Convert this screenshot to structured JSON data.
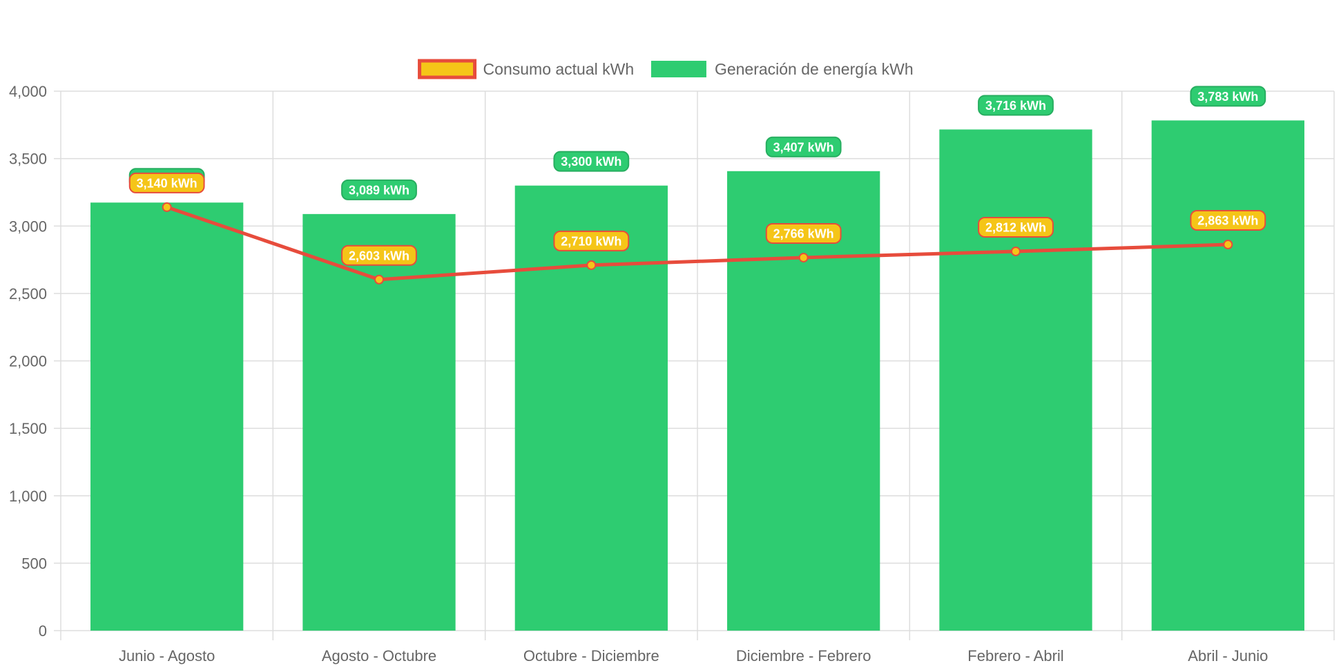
{
  "chart_data": {
    "type": "bar",
    "categories": [
      "Junio - Agosto",
      "Agosto - Octubre",
      "Octubre - Diciembre",
      "Diciembre - Febrero",
      "Febrero - Abril",
      "Abril - Junio"
    ],
    "series": [
      {
        "name": "Generación de energía kWh",
        "type": "bar",
        "values": [
          3174,
          3089,
          3300,
          3407,
          3716,
          3783
        ],
        "labels": [
          "3,174 kWh",
          "3,089 kWh",
          "3,300 kWh",
          "3,407 kWh",
          "3,716 kWh",
          "3,783 kWh"
        ],
        "color": "#2ecc71"
      },
      {
        "name": "Consumo actual kWh",
        "type": "line",
        "values": [
          3140,
          2603,
          2710,
          2766,
          2812,
          2863
        ],
        "labels": [
          "3,140 kWh",
          "2,603 kWh",
          "2,710 kWh",
          "2,766 kWh",
          "2,812 kWh",
          "2,863 kWh"
        ],
        "color": "#e74c3c",
        "fill_color": "#f5c518"
      }
    ],
    "legend": {
      "position": "top",
      "items": [
        {
          "label": "Consumo actual kWh",
          "fill": "#f5c518",
          "border": "#e74c3c"
        },
        {
          "label": "Generación de energía kWh",
          "fill": "#2ecc71",
          "border": "#2ecc71"
        }
      ]
    },
    "ylim": [
      0,
      4000
    ],
    "yticks": [
      0,
      500,
      1000,
      1500,
      2000,
      2500,
      3000,
      3500,
      4000
    ],
    "ytick_labels": [
      "0",
      "500",
      "1,000",
      "1,500",
      "2,000",
      "2,500",
      "3,000",
      "3,500",
      "4,000"
    ],
    "grid": true,
    "title": "",
    "xlabel": "",
    "ylabel": "",
    "colors": {
      "grid": "#dddddd",
      "axis_text": "#666666",
      "bar_label_bg": "#2ecc71",
      "bar_label_border": "#27ae60",
      "line_label_bg": "#f5c518",
      "line_label_border": "#e74c3c"
    }
  }
}
